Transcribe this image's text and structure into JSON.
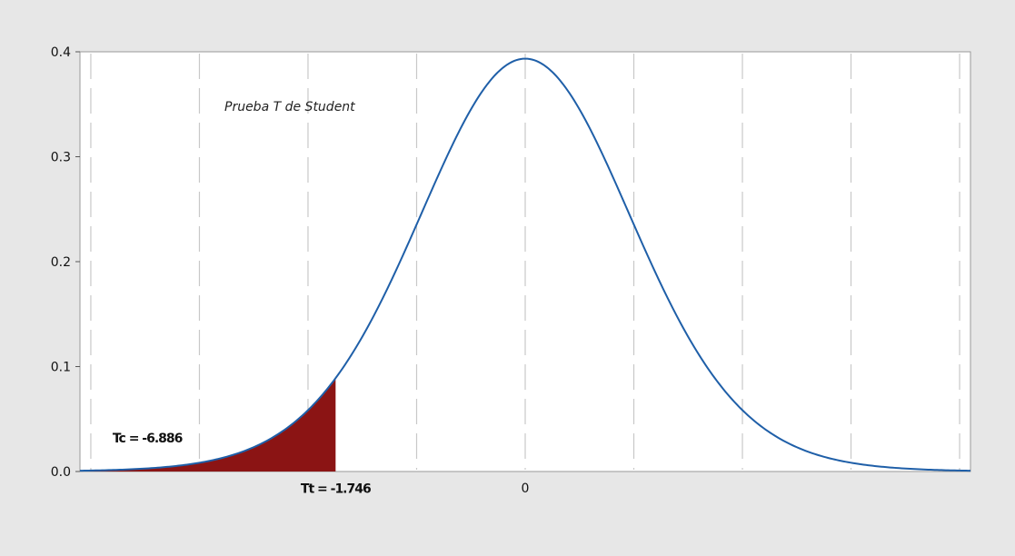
{
  "chart_data": {
    "type": "area",
    "title": "Prueba T de Student",
    "xlabel": "",
    "ylabel": "",
    "distribution": "Student t",
    "x_range": [
      -4.1,
      4.1
    ],
    "ylim": [
      0,
      0.4
    ],
    "y_ticks": [
      "0.0",
      "0.1",
      "0.2",
      "0.3",
      "0.4"
    ],
    "x_tick_labels": [
      {
        "x": 0,
        "label": "0"
      }
    ],
    "vertical_gridlines_x": [
      -4,
      -3,
      -2,
      -1,
      0,
      1,
      2,
      3,
      4
    ],
    "grid": "vertical dashed",
    "shaded_region": {
      "from": -4.1,
      "to": -1.746,
      "color": "#8b1414"
    },
    "curve_color": "#1f5fa8",
    "annotations": [
      {
        "name": "tc",
        "text": "Tc = -6.886",
        "x": -3.8,
        "y": 0.032
      },
      {
        "name": "tt",
        "text": "Tt = -1.746",
        "x": -1.746,
        "y": -0.016
      }
    ]
  }
}
